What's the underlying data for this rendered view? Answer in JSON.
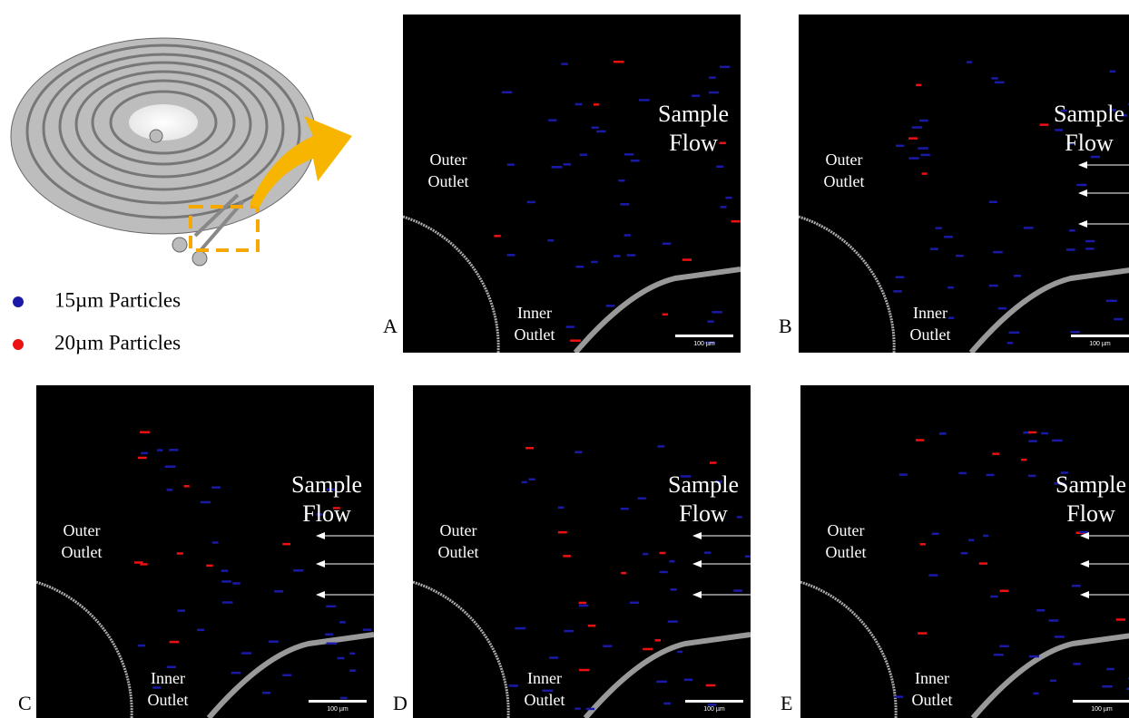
{
  "legend": [
    {
      "label": "15µm Particles",
      "color": "#1a1aa8"
    },
    {
      "label": "20µm Particles",
      "color": "#ee1111"
    }
  ],
  "panels": [
    {
      "letter": "A",
      "sample_flow": [
        "Sample",
        "Flow"
      ],
      "outer_outlet": [
        "Outer",
        "Outlet"
      ],
      "inner_outlet": [
        "Inner",
        "Outlet"
      ],
      "scale_bar": "100 µm",
      "arrows": false
    },
    {
      "letter": "B",
      "sample_flow": [
        "Sample",
        "Flow"
      ],
      "outer_outlet": [
        "Outer",
        "Outlet"
      ],
      "inner_outlet": [
        "Inner",
        "Outlet"
      ],
      "scale_bar": "100 µm",
      "arrows": true
    },
    {
      "letter": "C",
      "sample_flow": [
        "Sample",
        "Flow"
      ],
      "outer_outlet": [
        "Outer",
        "Outlet"
      ],
      "inner_outlet": [
        "Inner",
        "Outlet"
      ],
      "scale_bar": "100 µm",
      "arrows": true
    },
    {
      "letter": "D",
      "sample_flow": [
        "Sample",
        "Flow"
      ],
      "outer_outlet": [
        "Outer",
        "Outlet"
      ],
      "inner_outlet": [
        "Inner",
        "Outlet"
      ],
      "scale_bar": "100 µm",
      "arrows": true
    },
    {
      "letter": "E",
      "sample_flow": [
        "Sample",
        "Flow"
      ],
      "outer_outlet": [
        "Outer",
        "Outlet"
      ],
      "inner_outlet": [
        "Inner",
        "Outlet"
      ],
      "scale_bar": "100 µm",
      "arrows": true
    }
  ]
}
